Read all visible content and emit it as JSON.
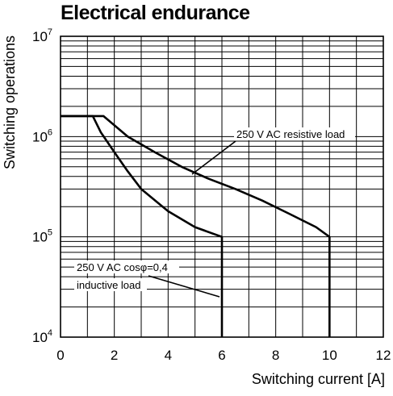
{
  "chart_data": {
    "type": "line",
    "title": "Electrical endurance",
    "xlabel": "Switching current [A]",
    "ylabel": "Switching operations",
    "xlim": [
      0,
      12
    ],
    "ylim": [
      10000,
      10000000
    ],
    "yscale": "log",
    "grid": true,
    "x_ticks": [
      "0",
      "2",
      "4",
      "6",
      "8",
      "10",
      "12"
    ],
    "y_ticks": [
      {
        "base": "10",
        "exp": "4"
      },
      {
        "base": "10",
        "exp": "5"
      },
      {
        "base": "10",
        "exp": "6"
      },
      {
        "base": "10",
        "exp": "7"
      }
    ],
    "series": [
      {
        "name": "250 V AC resistive load",
        "x": [
          0,
          1.6,
          2.5,
          3.5,
          4.5,
          5.5,
          6.5,
          7.5,
          8.5,
          9.5,
          10,
          10,
          10
        ],
        "y": [
          1600000,
          1600000,
          1000000,
          700000,
          500000,
          380000,
          300000,
          230000,
          170000,
          125000,
          100000,
          100000,
          10000
        ]
      },
      {
        "name": "250 V AC cosφ=0,4 inductive load",
        "x": [
          0,
          1.2,
          1.5,
          2,
          2.5,
          3,
          4,
          5,
          6,
          6,
          6
        ],
        "y": [
          1600000,
          1600000,
          1100000,
          700000,
          450000,
          300000,
          180000,
          125000,
          100000,
          100000,
          10000
        ]
      }
    ],
    "annotations": [
      {
        "lines": [
          "250 V AC resistive load"
        ]
      },
      {
        "lines": [
          "250 V AC cosφ=0,4",
          "inductive load"
        ]
      }
    ]
  }
}
